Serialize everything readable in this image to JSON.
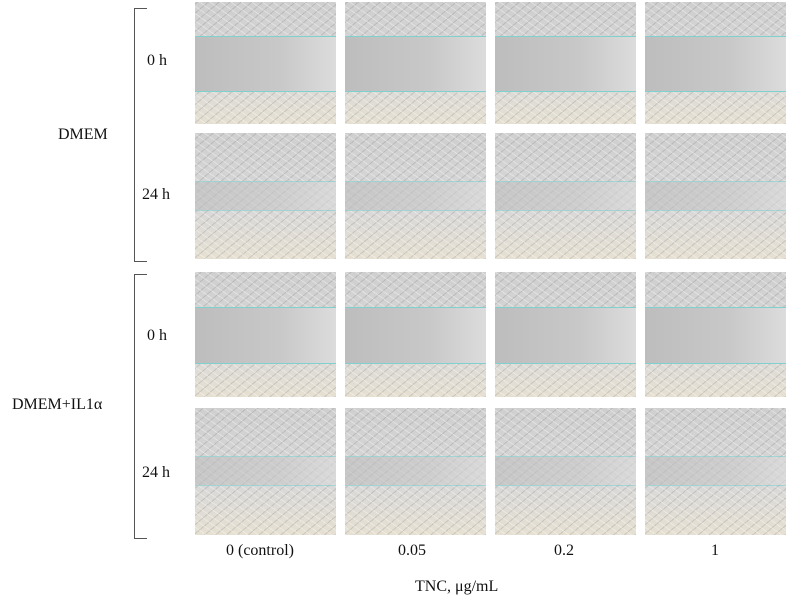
{
  "groups": [
    {
      "label": "DMEM",
      "rows": [
        "0 h",
        "24 h"
      ]
    },
    {
      "label": "DMEM+IL1α",
      "rows": [
        "0 h",
        "24 h"
      ]
    }
  ],
  "columns": [
    "0 (control)",
    "0.05",
    "0.2",
    "1"
  ],
  "x_axis_title": "TNC, μg/mL",
  "colors": {
    "wound_edge": "#7fd0cf"
  }
}
